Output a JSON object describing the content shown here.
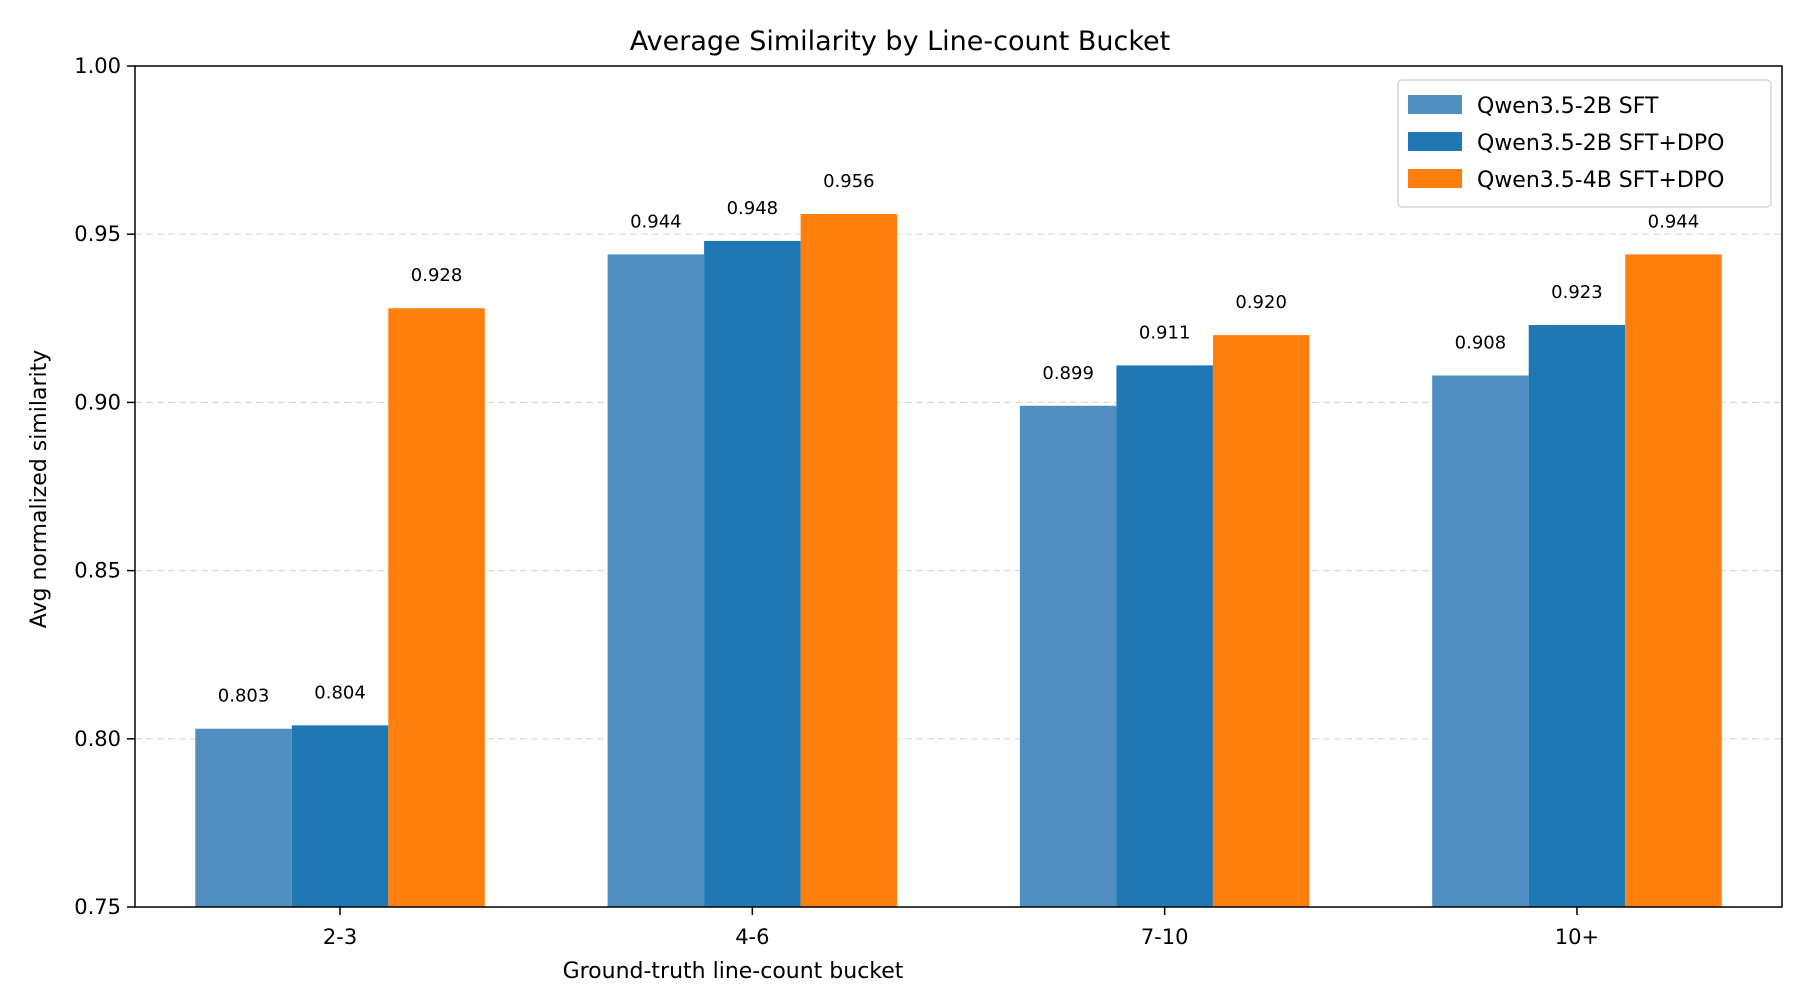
{
  "chart_data": {
    "type": "bar",
    "title": "Average Similarity by Line-count Bucket",
    "xlabel": "Ground-truth line-count bucket",
    "ylabel": "Avg normalized similarity",
    "categories": [
      "2-3",
      "4-6",
      "7-10",
      "10+"
    ],
    "ylim": [
      0.75,
      1.0
    ],
    "yticks": [
      0.75,
      0.8,
      0.85,
      0.9,
      0.95,
      1.0
    ],
    "ytick_labels": [
      "0.75",
      "0.80",
      "0.85",
      "0.90",
      "0.95",
      "1.00"
    ],
    "grid": "y-dashed",
    "legend_position": "top-right",
    "series": [
      {
        "name": "Qwen3.5-2B SFT",
        "color": "#4f8fbf",
        "values": [
          0.803,
          0.944,
          0.899,
          0.908
        ],
        "labels": [
          "0.803",
          "0.944",
          "0.899",
          "0.908"
        ]
      },
      {
        "name": "Qwen3.5-2B SFT+DPO",
        "color": "#1f77b4",
        "values": [
          0.804,
          0.948,
          0.911,
          0.923
        ],
        "labels": [
          "0.804",
          "0.948",
          "0.911",
          "0.923"
        ]
      },
      {
        "name": "Qwen3.5-4B SFT+DPO",
        "color": "#ff7f0e",
        "values": [
          0.928,
          0.956,
          0.92,
          0.944
        ],
        "labels": [
          "0.928",
          "0.956",
          "0.920",
          "0.944"
        ]
      }
    ]
  }
}
